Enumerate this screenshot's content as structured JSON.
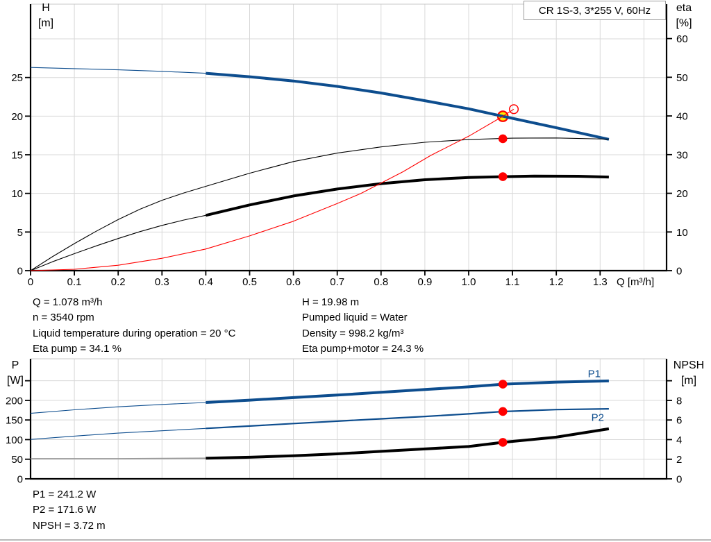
{
  "title_box": "CR 1S-3, 3*255 V, 60Hz",
  "info_top_left": [
    "Q = 1.078 m³/h",
    "n = 3540 rpm",
    "Liquid temperature during operation = 20 °C",
    "Eta pump = 34.1 %"
  ],
  "info_top_right": [
    "H = 19.98 m",
    "Pumped liquid = Water",
    "Density = 998.2 kg/m³",
    "Eta pump+motor = 24.3 %"
  ],
  "info_bottom": [
    "P1 = 241.2 W",
    "P2 = 171.6 W",
    "NPSH = 3.72 m"
  ],
  "colors": {
    "blue": "#0d4d8e",
    "black": "#000000",
    "red": "#ff0000",
    "yellow": "#ffe800",
    "gray": "#999999",
    "grid": "#d8d8d8",
    "border_top": "#c9c9c9"
  },
  "chart_data": [
    {
      "id": "top",
      "type": "line",
      "name": "hq-eta-chart",
      "axes": {
        "x": {
          "label": "Q [m³/h]",
          "range": [
            0,
            1.452
          ],
          "ticks": [
            0,
            0.1,
            0.2,
            0.3,
            0.4,
            0.5,
            0.6,
            0.7,
            0.8,
            0.9,
            1.0,
            1.1,
            1.2,
            1.3
          ],
          "tick_labels": [
            "0",
            "0.1",
            "0.2",
            "0.3",
            "0.4",
            "0.5",
            "0.6",
            "0.7",
            "0.8",
            "0.9",
            "1.0",
            "1.1",
            "1.2",
            "1.3"
          ],
          "grid": [
            0.1,
            0.2,
            0.3,
            0.4,
            0.5,
            0.6,
            0.7,
            0.8,
            0.9,
            1.0,
            1.1,
            1.2,
            1.3,
            1.4
          ]
        },
        "y_left": {
          "label": "H [m]",
          "label_lines": [
            "H",
            "[m]"
          ],
          "range": [
            0,
            34.5
          ],
          "ticks": [
            0,
            5,
            10,
            15,
            20,
            25
          ],
          "grid": [
            5,
            10,
            15,
            20,
            25,
            30
          ]
        },
        "y_right": {
          "label": "eta [%]",
          "label_lines": [
            "eta",
            "[%]"
          ],
          "range": [
            0,
            68.9
          ],
          "ticks": [
            0,
            10,
            20,
            30,
            40,
            50,
            60
          ]
        }
      },
      "series": [
        {
          "id": "h-curve-ext",
          "name": "H low-flow extension",
          "axis": "left",
          "color": "blue",
          "weight": "thin",
          "points": [
            [
              0,
              26.3
            ],
            [
              0.1,
              26.15
            ],
            [
              0.2,
              26.0
            ],
            [
              0.3,
              25.8
            ],
            [
              0.4,
              25.55
            ]
          ]
        },
        {
          "id": "h-curve",
          "name": "H (head)",
          "axis": "left",
          "color": "blue",
          "weight": "thick",
          "points": [
            [
              0.4,
              25.55
            ],
            [
              0.5,
              25.1
            ],
            [
              0.6,
              24.55
            ],
            [
              0.7,
              23.85
            ],
            [
              0.8,
              23.0
            ],
            [
              0.9,
              22.0
            ],
            [
              1.0,
              20.95
            ],
            [
              1.078,
              19.98
            ],
            [
              1.1,
              19.72
            ],
            [
              1.2,
              18.5
            ],
            [
              1.32,
              17.0
            ]
          ]
        },
        {
          "id": "eta-pump-curve",
          "name": "Eta pump",
          "axis": "right",
          "color": "black",
          "weight": "thin",
          "points": [
            [
              0,
              0
            ],
            [
              0.05,
              3.6
            ],
            [
              0.1,
              7.0
            ],
            [
              0.15,
              10.2
            ],
            [
              0.2,
              13.2
            ],
            [
              0.25,
              15.9
            ],
            [
              0.3,
              18.2
            ],
            [
              0.35,
              20.1
            ],
            [
              0.4,
              21.8
            ],
            [
              0.5,
              25.2
            ],
            [
              0.6,
              28.2
            ],
            [
              0.7,
              30.4
            ],
            [
              0.8,
              32.0
            ],
            [
              0.9,
              33.2
            ],
            [
              1.0,
              33.9
            ],
            [
              1.1,
              34.25
            ],
            [
              1.2,
              34.3
            ],
            [
              1.32,
              34.0
            ]
          ]
        },
        {
          "id": "eta-pump-motor-ext",
          "name": "Eta pump+motor low-flow extension",
          "axis": "right",
          "color": "black",
          "weight": "thin",
          "points": [
            [
              0,
              0
            ],
            [
              0.05,
              2.3
            ],
            [
              0.1,
              4.4
            ],
            [
              0.15,
              6.4
            ],
            [
              0.2,
              8.3
            ],
            [
              0.25,
              10.1
            ],
            [
              0.3,
              11.7
            ],
            [
              0.35,
              13.1
            ],
            [
              0.4,
              14.3
            ]
          ]
        },
        {
          "id": "eta-pump-motor-curve",
          "name": "Eta pump+motor",
          "axis": "right",
          "color": "black",
          "weight": "thick",
          "points": [
            [
              0.4,
              14.3
            ],
            [
              0.5,
              17.0
            ],
            [
              0.6,
              19.3
            ],
            [
              0.7,
              21.1
            ],
            [
              0.8,
              22.5
            ],
            [
              0.9,
              23.5
            ],
            [
              1.0,
              24.1
            ],
            [
              1.078,
              24.3
            ],
            [
              1.15,
              24.45
            ],
            [
              1.25,
              24.4
            ],
            [
              1.32,
              24.2
            ]
          ]
        },
        {
          "id": "system-curve",
          "name": "System / duty curve",
          "axis": "left",
          "color": "red",
          "weight": "hairline",
          "points": [
            [
              0,
              0
            ],
            [
              0.1,
              0.18
            ],
            [
              0.2,
              0.7
            ],
            [
              0.3,
              1.6
            ],
            [
              0.4,
              2.8
            ],
            [
              0.5,
              4.5
            ],
            [
              0.6,
              6.4
            ],
            [
              0.7,
              8.7
            ],
            [
              0.754,
              10.0
            ],
            [
              0.85,
              12.8
            ],
            [
              0.913,
              14.9
            ],
            [
              1.0,
              17.4
            ],
            [
              1.078,
              19.98
            ],
            [
              1.103,
              20.9
            ]
          ]
        }
      ],
      "markers": [
        {
          "id": "duty-point-marker",
          "q": 1.078,
          "value": 19.98,
          "axis": "left",
          "kind": "duty"
        },
        {
          "id": "system-curve-end-ring",
          "q": 1.103,
          "value": 20.9,
          "axis": "left",
          "kind": "open"
        },
        {
          "id": "eta-pump-point",
          "q": 1.078,
          "value": 34.1,
          "axis": "right",
          "kind": "dot"
        },
        {
          "id": "eta-pump-motor-point",
          "q": 1.078,
          "value": 24.3,
          "axis": "right",
          "kind": "dot"
        }
      ],
      "series_labels": []
    },
    {
      "id": "bottom",
      "type": "line",
      "name": "power-npsh-chart",
      "axes": {
        "x": {
          "label": "",
          "range": [
            0,
            1.452
          ],
          "ticks": [],
          "tick_labels": [],
          "grid": [
            0.1,
            0.2,
            0.3,
            0.4,
            0.5,
            0.6,
            0.7,
            0.8,
            0.9,
            1.0,
            1.1,
            1.2,
            1.3,
            1.4
          ]
        },
        "y_left": {
          "label": "P [W]",
          "label_lines": [
            "P",
            "[W]"
          ],
          "range": [
            0,
            306
          ],
          "ticks": [
            0,
            50,
            100,
            150,
            200
          ],
          "extra_tick": 250,
          "grid": [
            50,
            100,
            150,
            200,
            250
          ]
        },
        "y_right": {
          "label": "NPSH [m]",
          "label_lines": [
            "NPSH",
            "[m]"
          ],
          "range": [
            0,
            12.2
          ],
          "ticks": [
            0,
            2,
            4,
            6,
            8
          ],
          "extra_tick": 10
        }
      },
      "series": [
        {
          "id": "p1-curve-ext",
          "name": "P1 low-flow extension",
          "axis": "left",
          "color": "blue",
          "weight": "thin",
          "points": [
            [
              0,
              167
            ],
            [
              0.1,
              176
            ],
            [
              0.2,
              183.5
            ],
            [
              0.3,
              189.5
            ],
            [
              0.4,
              194.5
            ]
          ]
        },
        {
          "id": "p1-curve",
          "name": "P1 (input power)",
          "axis": "left",
          "color": "blue",
          "weight": "thick",
          "points": [
            [
              0.4,
              194.5
            ],
            [
              0.5,
              200.5
            ],
            [
              0.6,
              207
            ],
            [
              0.7,
              213.5
            ],
            [
              0.8,
              220.5
            ],
            [
              0.9,
              227.5
            ],
            [
              1.0,
              234.5
            ],
            [
              1.078,
              241.2
            ],
            [
              1.2,
              246.5
            ],
            [
              1.32,
              249.5
            ]
          ]
        },
        {
          "id": "p2-curve-ext",
          "name": "P2 low-flow extension",
          "axis": "left",
          "color": "blue",
          "weight": "thin",
          "points": [
            [
              0,
              100.5
            ],
            [
              0.1,
              109
            ],
            [
              0.2,
              116.5
            ],
            [
              0.3,
              122.5
            ],
            [
              0.4,
              128.5
            ]
          ]
        },
        {
          "id": "p2-curve",
          "name": "P2 (shaft power)",
          "axis": "left",
          "color": "blue",
          "weight": "medium",
          "points": [
            [
              0.4,
              128.5
            ],
            [
              0.5,
              134.5
            ],
            [
              0.6,
              141
            ],
            [
              0.7,
              147
            ],
            [
              0.8,
              153
            ],
            [
              0.9,
              159
            ],
            [
              1.0,
              165.5
            ],
            [
              1.078,
              171.6
            ],
            [
              1.2,
              176.5
            ],
            [
              1.32,
              178.5
            ]
          ]
        },
        {
          "id": "npsh-curve-ext",
          "name": "NPSH low-flow extension",
          "axis": "right",
          "color": "gray",
          "weight": "gray",
          "points": [
            [
              0,
              2.05
            ],
            [
              0.2,
              2.05
            ],
            [
              0.4,
              2.1
            ]
          ]
        },
        {
          "id": "npsh-curve",
          "name": "NPSH",
          "axis": "right",
          "color": "black",
          "weight": "thick",
          "points": [
            [
              0.4,
              2.1
            ],
            [
              0.5,
              2.2
            ],
            [
              0.6,
              2.35
            ],
            [
              0.7,
              2.55
            ],
            [
              0.8,
              2.8
            ],
            [
              0.9,
              3.05
            ],
            [
              1.0,
              3.3
            ],
            [
              1.078,
              3.72
            ],
            [
              1.2,
              4.25
            ],
            [
              1.32,
              5.1
            ]
          ]
        }
      ],
      "markers": [
        {
          "id": "p1-point",
          "q": 1.078,
          "value": 241.2,
          "axis": "left",
          "kind": "dot"
        },
        {
          "id": "p2-point",
          "q": 1.078,
          "value": 171.6,
          "axis": "left",
          "kind": "dot"
        },
        {
          "id": "npsh-point",
          "q": 1.078,
          "value": 3.72,
          "axis": "right",
          "kind": "dot"
        }
      ],
      "series_labels": [
        {
          "id": "p1-series-label",
          "text": "P1",
          "q": 1.272,
          "value": 259,
          "axis": "left"
        },
        {
          "id": "p2-series-label",
          "text": "P2",
          "q": 1.28,
          "value": 148,
          "axis": "left"
        }
      ]
    }
  ]
}
